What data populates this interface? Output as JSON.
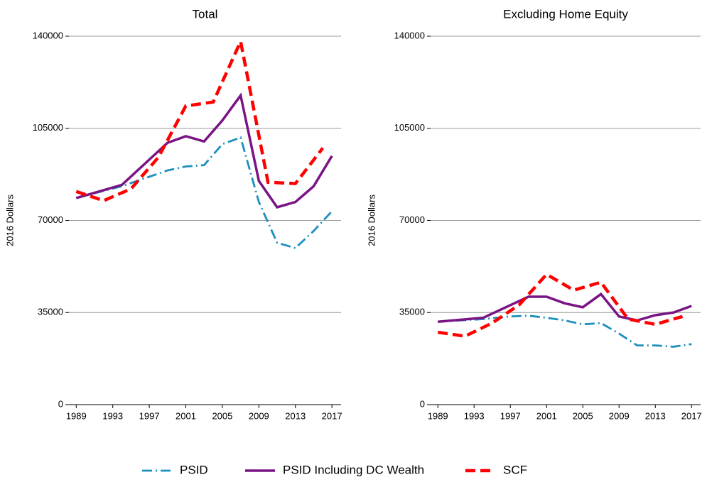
{
  "chart_data": [
    {
      "type": "line",
      "title": "Total",
      "ylabel": "2016 Dollars",
      "xlim": [
        1988.2,
        2018
      ],
      "xticks": [
        1989,
        1993,
        1997,
        2001,
        2005,
        2009,
        2013,
        2017
      ],
      "ylim": [
        0,
        140000
      ],
      "yticks": [
        0,
        35000,
        70000,
        105000,
        140000
      ],
      "grid": true,
      "series": [
        {
          "name": "PSID",
          "color": "#1b8fbd",
          "linestyle": "dashdot",
          "x": [
            1989,
            1994,
            1999,
            2001,
            2003,
            2005,
            2007,
            2009,
            2011,
            2013,
            2015,
            2017
          ],
          "values": [
            78500,
            83000,
            89000,
            90500,
            91000,
            99000,
            101500,
            77000,
            61500,
            59500,
            66000,
            73500
          ]
        },
        {
          "name": "PSID Including DC Wealth",
          "color": "#7a1485",
          "linestyle": "solid",
          "x": [
            1989,
            1994,
            1999,
            2001,
            2003,
            2005,
            2007,
            2009,
            2011,
            2013,
            2015,
            2017
          ],
          "values": [
            78500,
            83500,
            99500,
            102000,
            100000,
            108000,
            117500,
            85000,
            75000,
            77000,
            83000,
            94500
          ]
        },
        {
          "name": "SCF",
          "color": "#ff0000",
          "linestyle": "dashed",
          "x": [
            1989,
            1992,
            1995,
            1998,
            2001,
            2004,
            2007,
            2010,
            2013,
            2016
          ],
          "values": [
            81000,
            77500,
            82000,
            94000,
            113500,
            115000,
            138000,
            84500,
            84000,
            97500
          ]
        }
      ]
    },
    {
      "type": "line",
      "title": "Excluding Home Equity",
      "ylabel": "2016 Dollars",
      "xlim": [
        1988.2,
        2018
      ],
      "xticks": [
        1989,
        1993,
        1997,
        2001,
        2005,
        2009,
        2013,
        2017
      ],
      "ylim": [
        0,
        140000
      ],
      "yticks": [
        0,
        35000,
        70000,
        105000,
        140000
      ],
      "grid": true,
      "series": [
        {
          "color": "#1b8fbd",
          "linestyle": "dashdot",
          "x": [
            1989,
            1994,
            1997,
            1999,
            2001,
            2003,
            2005,
            2007,
            2009,
            2011,
            2013,
            2015,
            2017
          ],
          "values": [
            31500,
            32500,
            33500,
            33800,
            33000,
            32000,
            30500,
            31000,
            27000,
            22500,
            22500,
            22000,
            23000
          ]
        },
        {
          "color": "#7a1485",
          "linestyle": "solid",
          "x": [
            1989,
            1994,
            1999,
            2001,
            2003,
            2005,
            2007,
            2009,
            2011,
            2013,
            2015,
            2017
          ],
          "values": [
            31500,
            33000,
            41000,
            41000,
            38500,
            37000,
            42000,
            33500,
            32000,
            34000,
            35000,
            37500
          ]
        },
        {
          "color": "#ff0000",
          "linestyle": "dashed",
          "x": [
            1989,
            1992,
            1995,
            1998,
            2001,
            2004,
            2007,
            2010,
            2013,
            2016
          ],
          "values": [
            27500,
            26000,
            31000,
            38000,
            49500,
            43500,
            46500,
            32500,
            30500,
            33500
          ]
        }
      ]
    }
  ]
}
